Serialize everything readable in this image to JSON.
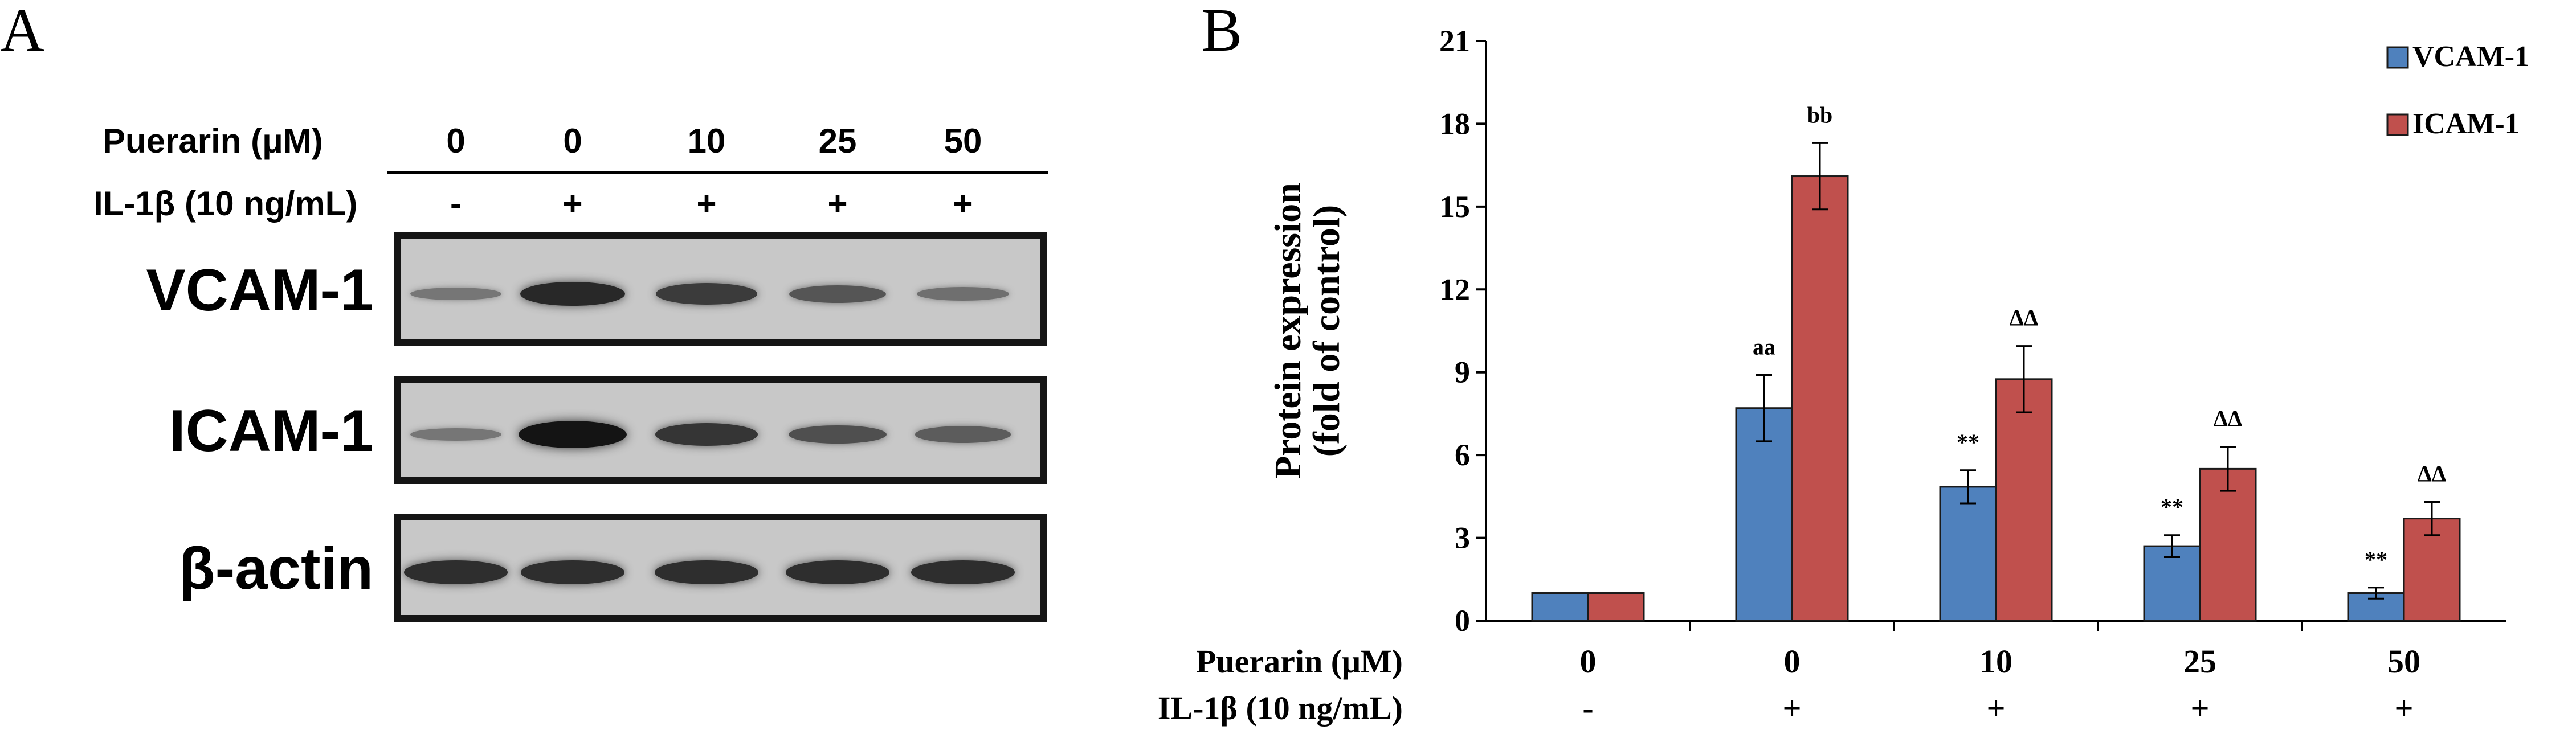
{
  "panel_a": {
    "letter": "A",
    "header": {
      "puerarin_label": "Puerarin (μM)",
      "il1b_label": "IL-1β (10 ng/mL)",
      "puerarin_values": [
        "0",
        "0",
        "10",
        "25",
        "50"
      ],
      "il1b_values": [
        "-",
        "+",
        "+",
        "+",
        "+"
      ]
    },
    "blots": [
      {
        "label": "VCAM-1",
        "band_intensity": [
          0.25,
          0.85,
          0.7,
          0.5,
          0.3
        ]
      },
      {
        "label": "ICAM-1",
        "band_intensity": [
          0.25,
          1.0,
          0.75,
          0.55,
          0.45
        ]
      },
      {
        "label": "β-actin",
        "band_intensity": [
          0.8,
          0.8,
          0.8,
          0.8,
          0.8
        ]
      }
    ]
  },
  "panel_b": {
    "letter": "B",
    "colors": {
      "vcam": "#4f81bd",
      "icam": "#c0504d"
    },
    "x_table": {
      "puerarin_label": "Puerarin (μM)",
      "il1b_label": "IL-1β (10 ng/mL)",
      "puerarin_values": [
        "0",
        "0",
        "10",
        "25",
        "50"
      ],
      "il1b_values": [
        "-",
        "+",
        "+",
        "+",
        "+"
      ]
    }
  },
  "chart_data": {
    "type": "bar",
    "title": "",
    "ylabel": "Protein expression (fold of control)",
    "ylabel_lines": [
      "Protein expression",
      "(fold of control)"
    ],
    "xlabel": "",
    "ylim": [
      0,
      21
    ],
    "yticks": [
      0,
      3,
      6,
      9,
      12,
      15,
      18,
      21
    ],
    "categories": [
      "0 / -",
      "0 / +",
      "10 / +",
      "25 / +",
      "50 / +"
    ],
    "legend_position": "top-right",
    "grid": false,
    "series": [
      {
        "name": "VCAM-1",
        "values": [
          1.0,
          7.7,
          4.85,
          2.7,
          1.0
        ],
        "errors": [
          0,
          1.2,
          0.6,
          0.4,
          0.2
        ],
        "annotations": [
          "",
          "aa",
          "**",
          "**",
          "**"
        ]
      },
      {
        "name": "ICAM-1",
        "values": [
          1.0,
          16.1,
          8.75,
          5.5,
          3.7
        ],
        "errors": [
          0,
          1.2,
          1.2,
          0.8,
          0.6
        ],
        "annotations": [
          "",
          "bb",
          "ΔΔ",
          "ΔΔ",
          "ΔΔ"
        ]
      }
    ]
  }
}
